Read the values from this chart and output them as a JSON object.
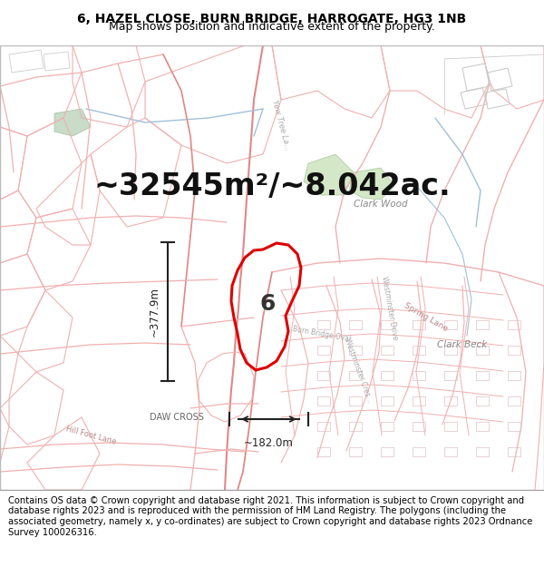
{
  "title_line1": "6, HAZEL CLOSE, BURN BRIDGE, HARROGATE, HG3 1NB",
  "title_line2": "Map shows position and indicative extent of the property.",
  "area_text": "~32545m²/~8.042ac.",
  "label_number": "6",
  "dim_vertical": "~377.9m",
  "dim_horizontal": "~182.0m",
  "footer_text": "Contains OS data © Crown copyright and database right 2021. This information is subject to Crown copyright and database rights 2023 and is reproduced with the permission of HM Land Registry. The polygons (including the associated geometry, namely x, y co-ordinates) are subject to Crown copyright and database rights 2023 Ordnance Survey 100026316.",
  "map_bg": "#ffffff",
  "road_color": "#f0b0b0",
  "road_color_dark": "#e08888",
  "highlight_color": "#dd0000",
  "green_color": "#d4e8c8",
  "blue_color": "#b8d8e8",
  "gray_color": "#cccccc",
  "dim_color": "#222222",
  "title_fontsize": 10,
  "subtitle_fontsize": 9,
  "area_fontsize": 24,
  "label_fontsize": 18,
  "footer_fontsize": 7.2,
  "place_label_color": "#888888",
  "road_label_color": "#aaaaaa"
}
